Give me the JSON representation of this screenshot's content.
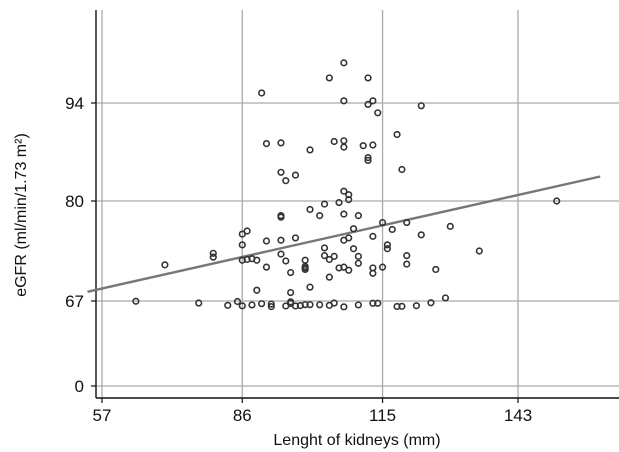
{
  "chart_data": {
    "type": "scatter",
    "title": "",
    "xlabel": "Lenght of kidneys (mm)",
    "ylabel": "eGFR (ml/min/1.73 m²)",
    "x_ticks": [
      57,
      86,
      115,
      143
    ],
    "y_ticks": [
      0,
      67,
      80,
      94
    ],
    "y_scale": "nonlinear (ticks 0, 67, 80, 94 equally spaced)",
    "xlim": [
      54,
      160
    ],
    "grid": true,
    "legend": "none",
    "colors": {
      "points": "#333333",
      "fit_line": "#777777",
      "grid": "#aaaaaa",
      "axis": "#111111"
    },
    "fit_line": {
      "x": [
        54,
        160
      ],
      "y": [
        68.2,
        83.5
      ]
    },
    "points": [
      {
        "x": 64,
        "y": 66.8
      },
      {
        "x": 70,
        "y": 71.7
      },
      {
        "x": 77,
        "y": 65.4
      },
      {
        "x": 80,
        "y": 72.7
      },
      {
        "x": 80,
        "y": 73.2
      },
      {
        "x": 83,
        "y": 63.6
      },
      {
        "x": 85,
        "y": 66.6
      },
      {
        "x": 86,
        "y": 72.3
      },
      {
        "x": 86,
        "y": 74.3
      },
      {
        "x": 86,
        "y": 75.7
      },
      {
        "x": 86,
        "y": 63.2
      },
      {
        "x": 87,
        "y": 76.1
      },
      {
        "x": 87,
        "y": 72.4
      },
      {
        "x": 88,
        "y": 63.9
      },
      {
        "x": 88,
        "y": 72.5
      },
      {
        "x": 89,
        "y": 68.4
      },
      {
        "x": 89,
        "y": 72.3
      },
      {
        "x": 90,
        "y": 64.9
      },
      {
        "x": 90,
        "y": 95.4
      },
      {
        "x": 91,
        "y": 71.4
      },
      {
        "x": 91,
        "y": 74.8
      },
      {
        "x": 91,
        "y": 88.2
      },
      {
        "x": 92,
        "y": 62.6
      },
      {
        "x": 92,
        "y": 64.6
      },
      {
        "x": 94,
        "y": 73.1
      },
      {
        "x": 94,
        "y": 74.9
      },
      {
        "x": 94,
        "y": 77.9
      },
      {
        "x": 94,
        "y": 78.1
      },
      {
        "x": 94,
        "y": 84.1
      },
      {
        "x": 94,
        "y": 88.3
      },
      {
        "x": 95,
        "y": 63.1
      },
      {
        "x": 95,
        "y": 72.2
      },
      {
        "x": 95,
        "y": 82.9
      },
      {
        "x": 96,
        "y": 68.1
      },
      {
        "x": 96,
        "y": 65.1
      },
      {
        "x": 96,
        "y": 66.3
      },
      {
        "x": 96,
        "y": 70.7
      },
      {
        "x": 97,
        "y": 63.1
      },
      {
        "x": 97,
        "y": 75.2
      },
      {
        "x": 97,
        "y": 83.7
      },
      {
        "x": 98,
        "y": 63.4
      },
      {
        "x": 99,
        "y": 64.1
      },
      {
        "x": 99,
        "y": 71.1
      },
      {
        "x": 99,
        "y": 71.5
      },
      {
        "x": 99,
        "y": 71.3
      },
      {
        "x": 99,
        "y": 72.3
      },
      {
        "x": 100,
        "y": 78.9
      },
      {
        "x": 100,
        "y": 87.3
      },
      {
        "x": 100,
        "y": 68.8
      },
      {
        "x": 100,
        "y": 64.1
      },
      {
        "x": 102,
        "y": 64.0
      },
      {
        "x": 102,
        "y": 78.1
      },
      {
        "x": 103,
        "y": 73.9
      },
      {
        "x": 103,
        "y": 72.9
      },
      {
        "x": 103,
        "y": 79.6
      },
      {
        "x": 104,
        "y": 70.1
      },
      {
        "x": 104,
        "y": 63.6
      },
      {
        "x": 104,
        "y": 97.5
      },
      {
        "x": 104,
        "y": 72.4
      },
      {
        "x": 105,
        "y": 72.8
      },
      {
        "x": 105,
        "y": 65.4
      },
      {
        "x": 105,
        "y": 88.5
      },
      {
        "x": 106,
        "y": 71.3
      },
      {
        "x": 106,
        "y": 79.8
      },
      {
        "x": 107,
        "y": 71.4
      },
      {
        "x": 107,
        "y": 62.4
      },
      {
        "x": 107,
        "y": 81.4
      },
      {
        "x": 107,
        "y": 94.3
      },
      {
        "x": 107,
        "y": 99.6
      },
      {
        "x": 107,
        "y": 88.6
      },
      {
        "x": 107,
        "y": 87.7
      },
      {
        "x": 107,
        "y": 78.3
      },
      {
        "x": 107,
        "y": 74.9
      },
      {
        "x": 108,
        "y": 71.0
      },
      {
        "x": 108,
        "y": 75.2
      },
      {
        "x": 108,
        "y": 80.9
      },
      {
        "x": 108,
        "y": 80.2
      },
      {
        "x": 109,
        "y": 73.8
      },
      {
        "x": 109,
        "y": 76.4
      },
      {
        "x": 110,
        "y": 71.9
      },
      {
        "x": 110,
        "y": 63.9
      },
      {
        "x": 110,
        "y": 72.8
      },
      {
        "x": 110,
        "y": 78.1
      },
      {
        "x": 111,
        "y": 87.9
      },
      {
        "x": 112,
        "y": 86.2
      },
      {
        "x": 112,
        "y": 85.8
      },
      {
        "x": 112,
        "y": 93.8
      },
      {
        "x": 112,
        "y": 97.5
      },
      {
        "x": 113,
        "y": 70.6
      },
      {
        "x": 113,
        "y": 71.3
      },
      {
        "x": 113,
        "y": 75.4
      },
      {
        "x": 113,
        "y": 94.3
      },
      {
        "x": 113,
        "y": 88.0
      },
      {
        "x": 113,
        "y": 65.2
      },
      {
        "x": 114,
        "y": 65.2
      },
      {
        "x": 114,
        "y": 92.6
      },
      {
        "x": 115,
        "y": 71.4
      },
      {
        "x": 115,
        "y": 77.2
      },
      {
        "x": 116,
        "y": 73.8
      },
      {
        "x": 116,
        "y": 74.3
      },
      {
        "x": 117,
        "y": 76.3
      },
      {
        "x": 118,
        "y": 89.5
      },
      {
        "x": 118,
        "y": 62.7
      },
      {
        "x": 119,
        "y": 84.5
      },
      {
        "x": 119,
        "y": 62.8
      },
      {
        "x": 120,
        "y": 72.9
      },
      {
        "x": 120,
        "y": 71.8
      },
      {
        "x": 120,
        "y": 77.2
      },
      {
        "x": 122,
        "y": 63.3
      },
      {
        "x": 123,
        "y": 75.6
      },
      {
        "x": 123,
        "y": 93.6
      },
      {
        "x": 125,
        "y": 65.6
      },
      {
        "x": 126,
        "y": 71.1
      },
      {
        "x": 128,
        "y": 67.4
      },
      {
        "x": 129,
        "y": 76.7
      },
      {
        "x": 135,
        "y": 73.5
      },
      {
        "x": 151,
        "y": 80.0
      }
    ]
  }
}
